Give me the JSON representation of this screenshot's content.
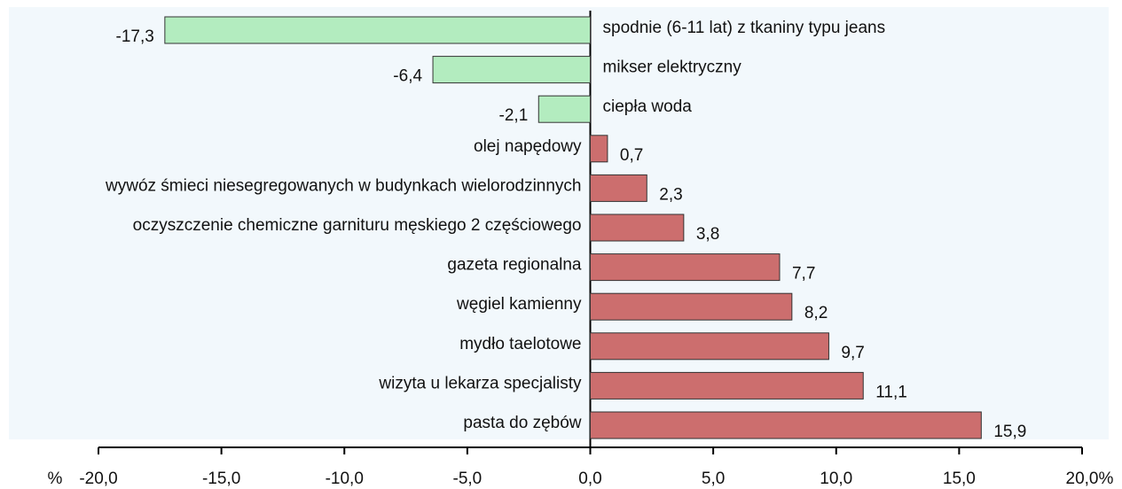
{
  "chart_data": {
    "type": "hbar",
    "categories": [
      "spodnie (6-11 lat) z tkaniny typu jeans",
      "mikser elektryczny",
      "ciepła woda",
      "olej napędowy",
      "wywóz śmieci niesegregowanych w budynkach wielorodzinnych",
      "oczyszczenie chemiczne garnituru męskiego 2 częściowego",
      "gazeta regionalna",
      "węgiel kamienny",
      "mydło taelotowe",
      "wizyta u lekarza specjalisty",
      "pasta do zębów"
    ],
    "values": [
      -17.3,
      -6.4,
      -2.1,
      0.7,
      2.3,
      3.8,
      7.7,
      8.2,
      9.7,
      11.1,
      15.9
    ],
    "value_labels": [
      "-17,3",
      "-6,4",
      "-2,1",
      "0,7",
      "2,3",
      "3,8",
      "7,7",
      "8,2",
      "9,7",
      "11,1",
      "15,9"
    ],
    "color_negative": "#b3ecbf",
    "color_positive": "#cc6e6e",
    "xlim": [
      -20,
      20
    ],
    "xticks": [
      {
        "value": -20,
        "label": "-20,0"
      },
      {
        "value": -15,
        "label": "-15,0"
      },
      {
        "value": -10,
        "label": "-10,0"
      },
      {
        "value": -5,
        "label": "-5,0"
      },
      {
        "value": 0,
        "label": "0,0"
      },
      {
        "value": 5,
        "label": "5,0"
      },
      {
        "value": 10,
        "label": "10,0"
      },
      {
        "value": 15,
        "label": "15,0"
      },
      {
        "value": 20,
        "label": "20,0"
      }
    ],
    "x_unit": "%"
  }
}
